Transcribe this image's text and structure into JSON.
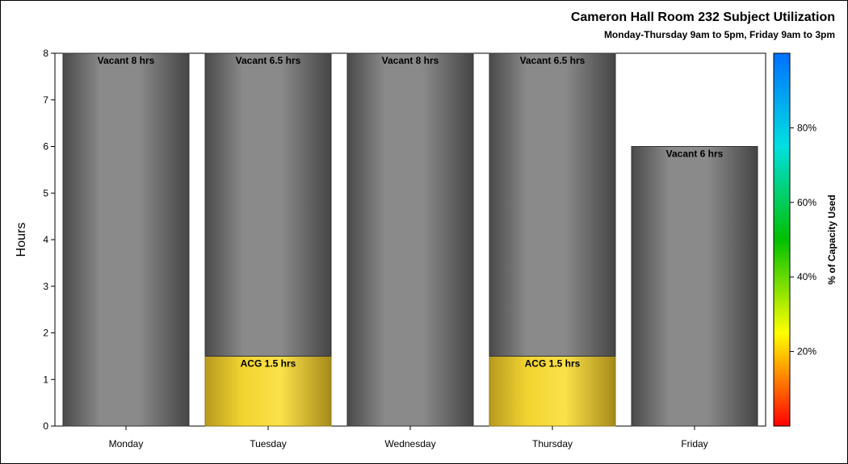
{
  "chart_data": {
    "type": "bar",
    "stacked": true,
    "title": "Cameron Hall Room 232 Subject Utilization",
    "subtitle": "Monday-Thursday 9am to 5pm, Friday 9am to 3pm",
    "ylabel": "Hours",
    "xlabel": "",
    "ylim": [
      0,
      8
    ],
    "yticks": [
      "0",
      "1",
      "2",
      "3",
      "4",
      "5",
      "6",
      "7",
      "8"
    ],
    "categories": [
      "Monday",
      "Tuesday",
      "Wednesday",
      "Thursday",
      "Friday"
    ],
    "series": [
      {
        "values": [
          0,
          1.5,
          0,
          1.5,
          0
        ],
        "labels": [
          "",
          "ACG 1.5 hrs",
          "",
          "ACG 1.5 hrs",
          ""
        ],
        "color": "#f2d431"
      },
      {
        "values": [
          8,
          6.5,
          8,
          6.5,
          6
        ],
        "labels": [
          "Vacant 8 hrs",
          "Vacant 6.5 hrs",
          "Vacant 8 hrs",
          "Vacant 6.5 hrs",
          "Vacant 6 hrs"
        ],
        "color": "#808080"
      }
    ],
    "colorbar": {
      "label": "% of Capacity Used",
      "ticks": [
        "20%",
        "40%",
        "60%",
        "80%"
      ],
      "tick_values": [
        20,
        40,
        60,
        80
      ],
      "range": [
        0,
        100
      ],
      "colors": [
        "#ff0000",
        "#ffff00",
        "#00c000",
        "#00e0e0",
        "#0070ff"
      ]
    },
    "grid": false,
    "legend": "none"
  }
}
